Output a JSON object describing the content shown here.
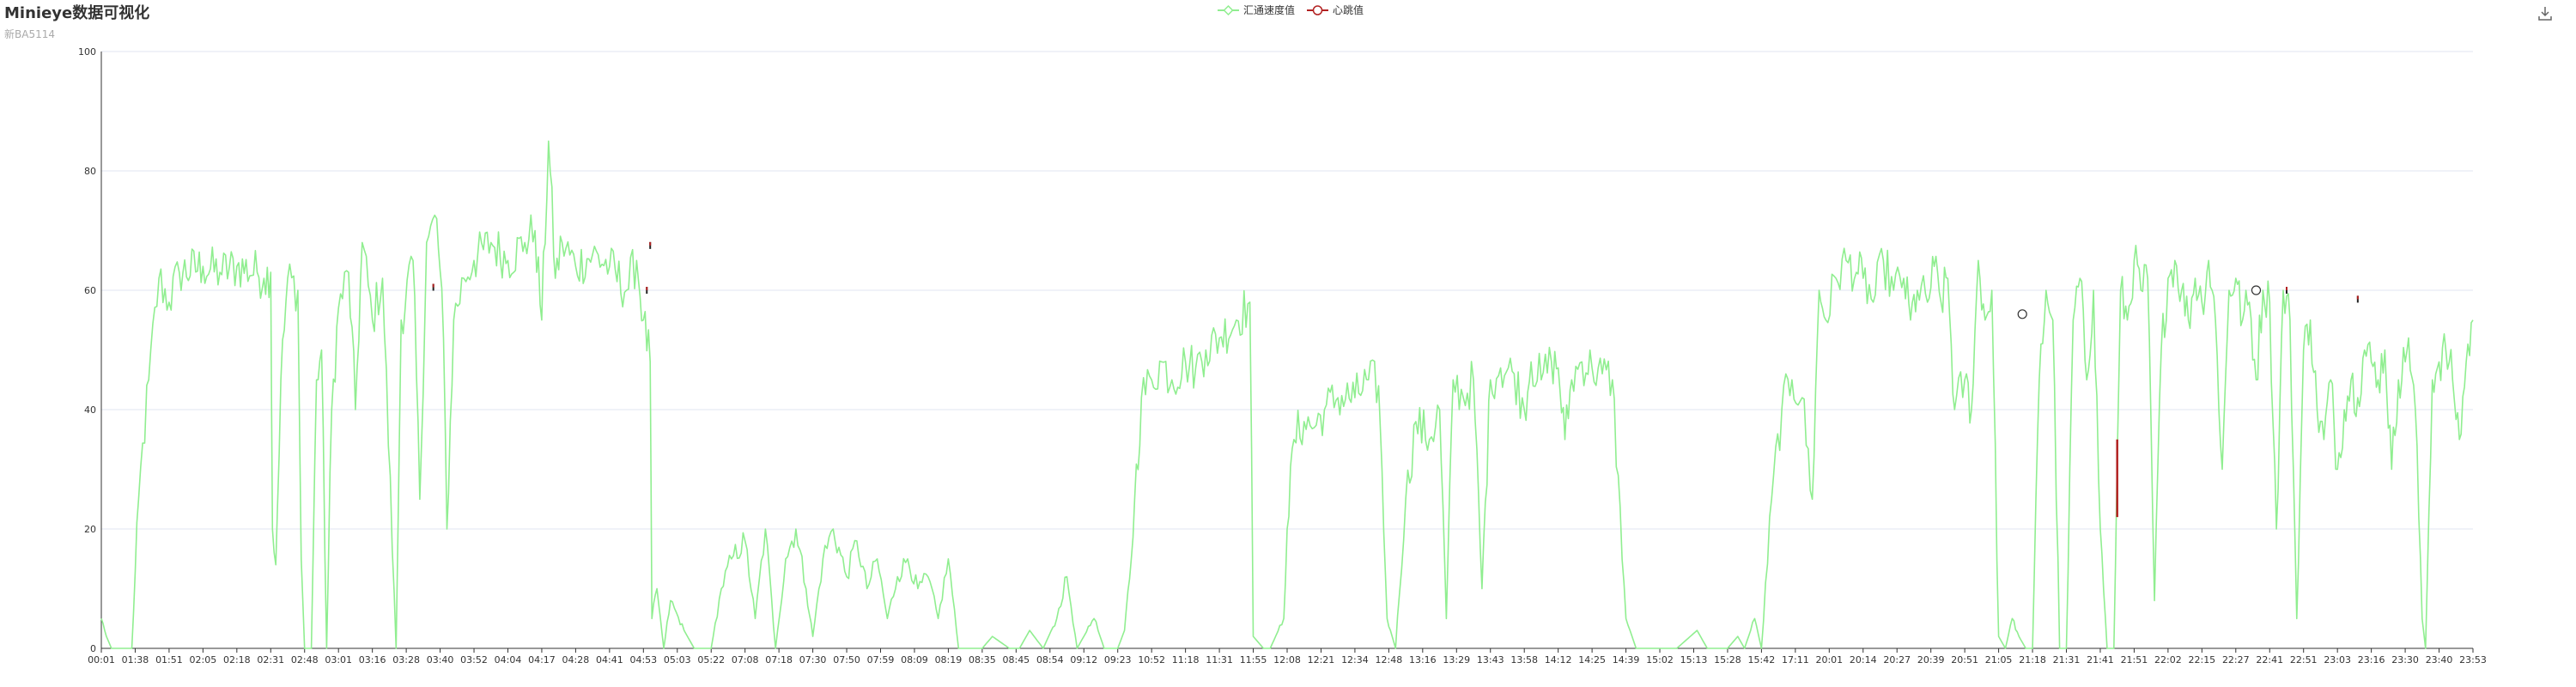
{
  "title": "Minieye数据可视化",
  "subtitle": "新BA5114",
  "toolbox": {
    "icon": "download-icon"
  },
  "colors": {
    "speed": "#90ee90",
    "heartbeat": "#b22222",
    "grid": "#e0e6f1",
    "axis": "#333333",
    "label": "#333333"
  },
  "chart_data": {
    "type": "line",
    "title": "Minieye数据可视化",
    "subtitle": "新BA5114",
    "legend_position": "top-center",
    "grid": true,
    "xlabel": "",
    "ylabel": "",
    "ylim": [
      0,
      100
    ],
    "yticks": [
      0,
      20,
      40,
      60,
      80,
      100
    ],
    "x_tick_labels": [
      "00:01",
      "01:38",
      "01:51",
      "02:05",
      "02:18",
      "02:31",
      "02:48",
      "03:01",
      "03:16",
      "03:28",
      "03:40",
      "03:52",
      "04:04",
      "04:17",
      "04:28",
      "04:41",
      "04:53",
      "05:03",
      "05:22",
      "07:08",
      "07:18",
      "07:30",
      "07:50",
      "07:59",
      "08:09",
      "08:19",
      "08:35",
      "08:45",
      "08:54",
      "09:12",
      "09:23",
      "10:52",
      "11:18",
      "11:31",
      "11:55",
      "12:08",
      "12:21",
      "12:34",
      "12:48",
      "13:16",
      "13:29",
      "13:43",
      "13:58",
      "14:12",
      "14:25",
      "14:39",
      "15:02",
      "15:13",
      "15:28",
      "15:42",
      "17:11",
      "20:01",
      "20:14",
      "20:27",
      "20:39",
      "20:51",
      "21:05",
      "21:18",
      "21:31",
      "21:41",
      "21:51",
      "22:02",
      "22:15",
      "22:27",
      "22:41",
      "22:51",
      "23:03",
      "23:16",
      "23:30",
      "23:40",
      "23:53"
    ],
    "series": [
      {
        "name": "汇通速度值",
        "style": "line",
        "anchors": [
          [
            0,
            5
          ],
          [
            0.15,
            2
          ],
          [
            0.3,
            0
          ],
          [
            0.9,
            0
          ],
          [
            1.1,
            25
          ],
          [
            1.4,
            45
          ],
          [
            1.7,
            62
          ],
          [
            2.0,
            58
          ],
          [
            2.3,
            63
          ],
          [
            3.0,
            64
          ],
          [
            3.5,
            63
          ],
          [
            4.0,
            64
          ],
          [
            4.6,
            63
          ],
          [
            4.8,
            62
          ],
          [
            5.0,
            63
          ],
          [
            5.05,
            20
          ],
          [
            5.15,
            14
          ],
          [
            5.3,
            45
          ],
          [
            5.5,
            62
          ],
          [
            5.8,
            60
          ],
          [
            5.9,
            15
          ],
          [
            6.0,
            0
          ],
          [
            6.2,
            0
          ],
          [
            6.35,
            45
          ],
          [
            6.5,
            50
          ],
          [
            6.65,
            0
          ],
          [
            6.8,
            40
          ],
          [
            7.0,
            57
          ],
          [
            7.3,
            63
          ],
          [
            7.5,
            40
          ],
          [
            7.7,
            68
          ],
          [
            8.0,
            55
          ],
          [
            8.3,
            62
          ],
          [
            8.7,
            0
          ],
          [
            8.85,
            55
          ],
          [
            9.2,
            65
          ],
          [
            9.4,
            25
          ],
          [
            9.6,
            68
          ],
          [
            9.9,
            72
          ],
          [
            10.1,
            52
          ],
          [
            10.2,
            20
          ],
          [
            10.4,
            55
          ],
          [
            10.7,
            62
          ],
          [
            11.0,
            65
          ],
          [
            11.5,
            68
          ],
          [
            12.0,
            65
          ],
          [
            12.5,
            68
          ],
          [
            12.8,
            70
          ],
          [
            13.0,
            55
          ],
          [
            13.2,
            85
          ],
          [
            13.4,
            62
          ],
          [
            13.6,
            68
          ],
          [
            14.0,
            64
          ],
          [
            14.5,
            66
          ],
          [
            15.0,
            64
          ],
          [
            15.5,
            60
          ],
          [
            15.8,
            65
          ],
          [
            16.0,
            55
          ],
          [
            16.2,
            48
          ],
          [
            16.25,
            5
          ],
          [
            16.4,
            10
          ],
          [
            16.6,
            0
          ],
          [
            16.8,
            8
          ],
          [
            17.2,
            3
          ],
          [
            17.5,
            0
          ],
          [
            18.0,
            0
          ],
          [
            18.3,
            10
          ],
          [
            18.6,
            15
          ],
          [
            19.0,
            18
          ],
          [
            19.3,
            5
          ],
          [
            19.6,
            20
          ],
          [
            19.9,
            0
          ],
          [
            20.2,
            15
          ],
          [
            20.5,
            20
          ],
          [
            20.8,
            10
          ],
          [
            21.0,
            2
          ],
          [
            21.3,
            15
          ],
          [
            21.6,
            20
          ],
          [
            22.0,
            12
          ],
          [
            22.3,
            18
          ],
          [
            22.6,
            10
          ],
          [
            22.9,
            15
          ],
          [
            23.2,
            5
          ],
          [
            23.5,
            12
          ],
          [
            23.8,
            15
          ],
          [
            24.1,
            10
          ],
          [
            24.4,
            12
          ],
          [
            24.7,
            5
          ],
          [
            25.0,
            15
          ],
          [
            25.3,
            0
          ],
          [
            25.6,
            0
          ],
          [
            26.0,
            0
          ],
          [
            26.3,
            2
          ],
          [
            26.8,
            0
          ],
          [
            27.1,
            0
          ],
          [
            27.4,
            3
          ],
          [
            27.8,
            0
          ],
          [
            28.2,
            5
          ],
          [
            28.5,
            12
          ],
          [
            28.8,
            0
          ],
          [
            29.3,
            5
          ],
          [
            29.6,
            0
          ],
          [
            30.0,
            0
          ],
          [
            30.2,
            3
          ],
          [
            30.4,
            15
          ],
          [
            30.5,
            25
          ],
          [
            30.7,
            42
          ],
          [
            31.0,
            45
          ],
          [
            31.3,
            48
          ],
          [
            31.6,
            45
          ],
          [
            32.0,
            48
          ],
          [
            32.3,
            47
          ],
          [
            32.6,
            50
          ],
          [
            33.0,
            52
          ],
          [
            33.5,
            55
          ],
          [
            33.9,
            58
          ],
          [
            34.0,
            2
          ],
          [
            34.3,
            0
          ],
          [
            34.5,
            0
          ],
          [
            34.9,
            5
          ],
          [
            35.0,
            20
          ],
          [
            35.2,
            35
          ],
          [
            35.5,
            38
          ],
          [
            35.8,
            37
          ],
          [
            36.1,
            40
          ],
          [
            36.5,
            42
          ],
          [
            37.0,
            42
          ],
          [
            37.4,
            45
          ],
          [
            37.7,
            44
          ],
          [
            37.95,
            5
          ],
          [
            38.2,
            0
          ],
          [
            38.5,
            25
          ],
          [
            38.8,
            38
          ],
          [
            39.2,
            35
          ],
          [
            39.5,
            40
          ],
          [
            39.7,
            5
          ],
          [
            39.9,
            45
          ],
          [
            40.2,
            42
          ],
          [
            40.5,
            45
          ],
          [
            40.75,
            10
          ],
          [
            41.0,
            45
          ],
          [
            41.3,
            47
          ],
          [
            41.7,
            46
          ],
          [
            42.0,
            40
          ],
          [
            42.2,
            48
          ],
          [
            42.5,
            45
          ],
          [
            42.8,
            48
          ],
          [
            43.0,
            47
          ],
          [
            43.2,
            35
          ],
          [
            43.4,
            45
          ],
          [
            43.7,
            48
          ],
          [
            44.0,
            47
          ],
          [
            44.3,
            46
          ],
          [
            44.6,
            45
          ],
          [
            45.0,
            5
          ],
          [
            45.3,
            0
          ],
          [
            45.8,
            0
          ],
          [
            46.2,
            0
          ],
          [
            46.5,
            0
          ],
          [
            47.1,
            3
          ],
          [
            47.4,
            0
          ],
          [
            47.6,
            0
          ],
          [
            48.0,
            0
          ],
          [
            48.3,
            2
          ],
          [
            48.5,
            0
          ],
          [
            48.8,
            5
          ],
          [
            49.0,
            0
          ],
          [
            49.3,
            25
          ],
          [
            49.6,
            40
          ],
          [
            49.9,
            45
          ],
          [
            50.2,
            42
          ],
          [
            50.5,
            25
          ],
          [
            50.7,
            60
          ],
          [
            50.9,
            55
          ],
          [
            51.2,
            62
          ],
          [
            51.5,
            65
          ],
          [
            51.8,
            63
          ],
          [
            52.0,
            62
          ],
          [
            52.3,
            58
          ],
          [
            52.6,
            65
          ],
          [
            52.9,
            60
          ],
          [
            53.2,
            62
          ],
          [
            53.4,
            55
          ],
          [
            53.6,
            60
          ],
          [
            53.9,
            58
          ],
          [
            54.1,
            64
          ],
          [
            54.3,
            58
          ],
          [
            54.5,
            62
          ],
          [
            54.7,
            40
          ],
          [
            55.0,
            45
          ],
          [
            55.2,
            40
          ],
          [
            55.4,
            65
          ],
          [
            55.6,
            55
          ],
          [
            55.8,
            60
          ],
          [
            56.0,
            2
          ],
          [
            56.2,
            0
          ],
          [
            56.4,
            5
          ],
          [
            56.6,
            2
          ],
          [
            56.8,
            0
          ],
          [
            57.0,
            0
          ],
          [
            57.2,
            45
          ],
          [
            57.4,
            60
          ],
          [
            57.6,
            55
          ],
          [
            57.8,
            0
          ],
          [
            58.0,
            0
          ],
          [
            58.2,
            55
          ],
          [
            58.4,
            62
          ],
          [
            58.6,
            45
          ],
          [
            58.8,
            60
          ],
          [
            59.0,
            20
          ],
          [
            59.2,
            0
          ],
          [
            59.4,
            0
          ],
          [
            59.6,
            60
          ],
          [
            59.8,
            55
          ],
          [
            60.0,
            65
          ],
          [
            60.2,
            60
          ],
          [
            60.4,
            62
          ],
          [
            60.6,
            8
          ],
          [
            60.8,
            50
          ],
          [
            61.0,
            62
          ],
          [
            61.2,
            65
          ],
          [
            61.4,
            60
          ],
          [
            61.6,
            55
          ],
          [
            61.8,
            62
          ],
          [
            62.0,
            58
          ],
          [
            62.2,
            65
          ],
          [
            62.4,
            55
          ],
          [
            62.6,
            30
          ],
          [
            62.8,
            60
          ],
          [
            63.0,
            62
          ],
          [
            63.2,
            55
          ],
          [
            63.4,
            58
          ],
          [
            63.6,
            45
          ],
          [
            63.8,
            60
          ],
          [
            64.0,
            58
          ],
          [
            64.2,
            20
          ],
          [
            64.4,
            60
          ],
          [
            64.6,
            55
          ],
          [
            64.8,
            5
          ],
          [
            65.0,
            50
          ],
          [
            65.2,
            55
          ],
          [
            65.4,
            40
          ],
          [
            65.6,
            35
          ],
          [
            65.8,
            45
          ],
          [
            66.0,
            30
          ],
          [
            66.2,
            40
          ],
          [
            66.4,
            45
          ],
          [
            66.6,
            42
          ],
          [
            66.8,
            50
          ],
          [
            67.0,
            48
          ],
          [
            67.2,
            45
          ],
          [
            67.4,
            50
          ],
          [
            67.6,
            30
          ],
          [
            67.8,
            45
          ],
          [
            68.0,
            48
          ],
          [
            68.1,
            52
          ],
          [
            68.3,
            40
          ],
          [
            68.5,
            5
          ],
          [
            68.6,
            0
          ],
          [
            68.8,
            45
          ],
          [
            69.0,
            48
          ],
          [
            69.2,
            50
          ],
          [
            69.4,
            45
          ],
          [
            69.6,
            35
          ],
          [
            69.8,
            48
          ],
          [
            70.0,
            55
          ]
        ]
      },
      {
        "name": "心跳值",
        "style": "markers",
        "points": [
          {
            "x": 9.8,
            "y": 60.5,
            "marker": "bar"
          },
          {
            "x": 16.1,
            "y": 60.0,
            "marker": "bar"
          },
          {
            "x": 16.2,
            "y": 67.5,
            "marker": "bar"
          },
          {
            "x": 56.7,
            "y": 56.0,
            "marker": "circle"
          },
          {
            "x": 59.5,
            "y": 28.5,
            "marker": "range",
            "y2": 35.0,
            "y1": 22.0
          },
          {
            "x": 63.6,
            "y": 60.0,
            "marker": "circle"
          },
          {
            "x": 64.5,
            "y": 60.0,
            "marker": "bar"
          },
          {
            "x": 66.6,
            "y": 58.5,
            "marker": "bar"
          }
        ]
      }
    ]
  }
}
